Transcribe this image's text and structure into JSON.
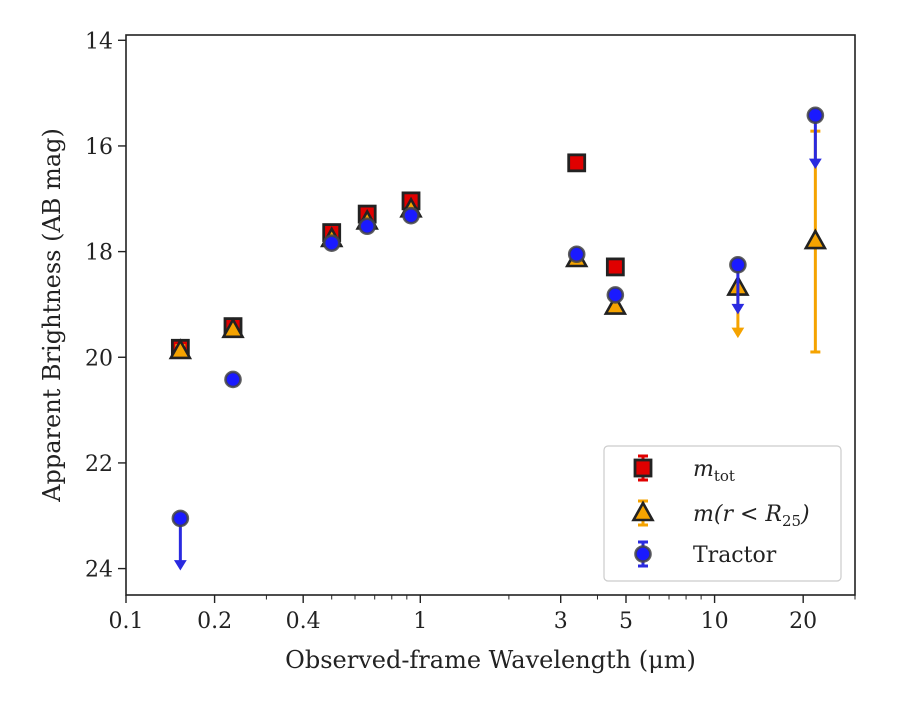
{
  "chart_data": {
    "type": "scatter",
    "title": "",
    "xlabel": "Observed-frame Wavelength (μm)",
    "ylabel": "Apparent Brightness (AB mag)",
    "xscale": "log",
    "xlim": [
      0.1,
      30
    ],
    "ylim": [
      24.5,
      13.9
    ],
    "y_inverted": true,
    "grid": false,
    "legend_position": "lower-right",
    "x_ticks": [
      {
        "value": 0.1,
        "label": "0.1"
      },
      {
        "value": 0.2,
        "label": "0.2"
      },
      {
        "value": 0.4,
        "label": "0.4"
      },
      {
        "value": 1,
        "label": "1"
      },
      {
        "value": 3,
        "label": "3"
      },
      {
        "value": 5,
        "label": "5"
      },
      {
        "value": 10,
        "label": "10"
      },
      {
        "value": 20,
        "label": "20"
      }
    ],
    "y_ticks": [
      {
        "value": 14,
        "label": "14"
      },
      {
        "value": 16,
        "label": "16"
      },
      {
        "value": 18,
        "label": "18"
      },
      {
        "value": 20,
        "label": "20"
      },
      {
        "value": 22,
        "label": "22"
      },
      {
        "value": 24,
        "label": "24"
      }
    ],
    "series": [
      {
        "name": "m_tot",
        "legend_main": "m",
        "legend_sub": "tot",
        "marker": "square",
        "color": "#e00000",
        "edge": "#222222",
        "errcolor": "#e00000",
        "points": [
          {
            "x": 0.153,
            "y": 19.83,
            "err": 0.05
          },
          {
            "x": 0.231,
            "y": 19.42,
            "err": 0.05
          },
          {
            "x": 0.5,
            "y": 17.64,
            "err": 0.05
          },
          {
            "x": 0.66,
            "y": 17.29,
            "err": 0.05
          },
          {
            "x": 0.93,
            "y": 17.04,
            "err": 0.05
          },
          {
            "x": 3.4,
            "y": 16.32,
            "err": 0.03
          },
          {
            "x": 4.6,
            "y": 18.29,
            "err": 0.03
          }
        ]
      },
      {
        "name": "m(r < R25)",
        "legend_main": "m(r < R",
        "legend_sub": "25",
        "legend_tail": ")",
        "marker": "triangle",
        "color": "#f5a300",
        "edge": "#222222",
        "errcolor": "#f5a300",
        "points": [
          {
            "x": 0.153,
            "y": 19.88,
            "err": 0.1
          },
          {
            "x": 0.231,
            "y": 19.48,
            "err": 0.05
          },
          {
            "x": 0.5,
            "y": 17.76,
            "err": 0.05
          },
          {
            "x": 0.66,
            "y": 17.43,
            "err": 0.05
          },
          {
            "x": 0.93,
            "y": 17.2,
            "err": 0.05
          },
          {
            "x": 3.4,
            "y": 18.14,
            "err": 0.03
          },
          {
            "x": 4.6,
            "y": 19.04,
            "err": 0.03
          },
          {
            "x": 12,
            "y": 18.68,
            "upper_limit_to": 19.6
          },
          {
            "x": 22,
            "y": 17.8,
            "err_low": 15.72,
            "err_high": 19.9
          }
        ]
      },
      {
        "name": "Tractor",
        "legend_main": "Tractor",
        "marker": "circle",
        "color": "#1a1aff",
        "edge": "#444444",
        "errcolor": "#2a2ae0",
        "points": [
          {
            "x": 0.153,
            "y": 23.05,
            "upper_limit_to": 24.0
          },
          {
            "x": 0.231,
            "y": 20.42,
            "err": 0.05
          },
          {
            "x": 0.5,
            "y": 17.84,
            "err": 0.05
          },
          {
            "x": 0.66,
            "y": 17.52,
            "err": 0.05
          },
          {
            "x": 0.93,
            "y": 17.32,
            "err": 0.05
          },
          {
            "x": 3.4,
            "y": 18.05,
            "err": 0.03
          },
          {
            "x": 4.6,
            "y": 18.82,
            "err": 0.03
          },
          {
            "x": 12,
            "y": 18.25,
            "upper_limit_to": 19.15
          },
          {
            "x": 22,
            "y": 15.42,
            "upper_limit_to": 16.4
          }
        ]
      }
    ]
  }
}
